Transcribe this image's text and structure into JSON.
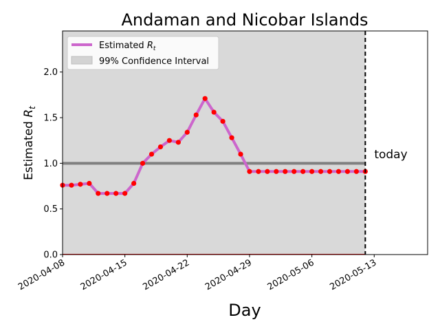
{
  "chart_data": {
    "type": "line",
    "title": "Andaman and Nicobar Islands",
    "xlabel": "Day",
    "ylabel_main": "Estimated ",
    "ylabel_sym": "R",
    "ylabel_sub": "t",
    "x_tick_labels": [
      "2020-04-08",
      "2020-04-15",
      "2020-04-22",
      "2020-04-29",
      "2020-05-06",
      "2020-05-13"
    ],
    "y_tick_labels": [
      "0.0",
      "0.5",
      "1.0",
      "1.5",
      "2.0"
    ],
    "y_ticks": [
      0.0,
      0.5,
      1.0,
      1.5,
      2.0
    ],
    "ylim": [
      0.0,
      2.45
    ],
    "xlim_days": [
      0,
      41
    ],
    "x_tick_days": [
      0,
      7,
      14,
      21,
      28,
      35
    ],
    "today_day": 34,
    "today_label": "today",
    "reference_value": 1.0,
    "ci_band": {
      "start_day": 0,
      "end_day": 34,
      "low": 0.0,
      "high": 2.45
    },
    "legend": {
      "placement": "top-left",
      "items": [
        {
          "label_main": "Estimated ",
          "label_sym": "R",
          "label_sub": "t",
          "type": "line"
        },
        {
          "label": "99% Confidence Interval",
          "type": "patch"
        }
      ]
    },
    "series": [
      {
        "name": "Estimated Rt",
        "start_date": "2020-04-08",
        "days": [
          0,
          1,
          2,
          3,
          4,
          5,
          6,
          7,
          8,
          9,
          10,
          11,
          12,
          13,
          14,
          15,
          16,
          17,
          18,
          19,
          20,
          21,
          22,
          23,
          24,
          25,
          26,
          27,
          28,
          29,
          30,
          31,
          32,
          33,
          34
        ],
        "values": [
          0.76,
          0.76,
          0.77,
          0.78,
          0.67,
          0.67,
          0.67,
          0.67,
          0.78,
          1.0,
          1.1,
          1.18,
          1.25,
          1.23,
          1.34,
          1.53,
          1.71,
          1.56,
          1.46,
          1.28,
          1.1,
          0.91,
          0.91,
          0.91,
          0.91,
          0.91,
          0.91,
          0.91,
          0.91,
          0.91,
          0.91,
          0.91,
          0.91,
          0.91,
          0.91
        ]
      }
    ],
    "colors": {
      "line": "#cc66cc",
      "dots": "#ff0000",
      "band": "#d9d9d9",
      "reference": "#808080",
      "today_line": "#000000"
    }
  }
}
